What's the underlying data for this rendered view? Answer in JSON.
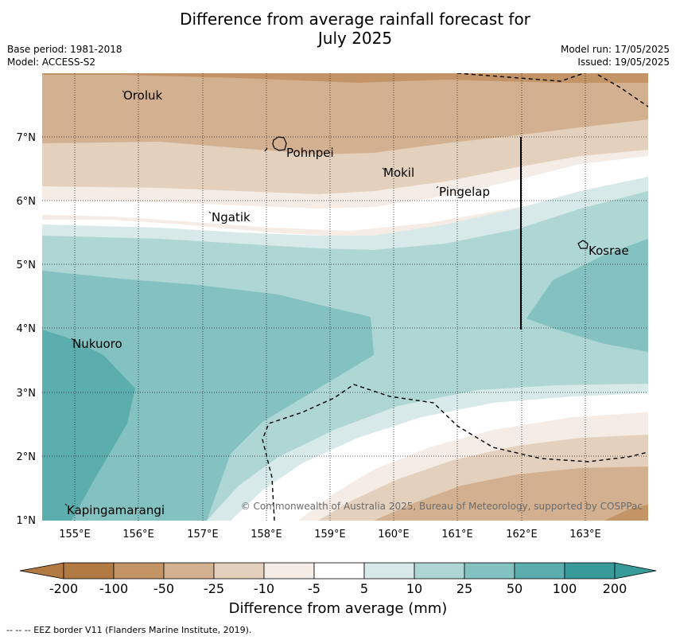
{
  "header": {
    "title_line1": "Difference from average rainfall forecast for",
    "title_line2": "July 2025",
    "base_period": "Base period: 1981-2018",
    "model": "Model: ACCESS-S2",
    "model_run": "Model run: 17/05/2025",
    "issued": "Issued: 19/05/2025"
  },
  "map": {
    "lon_labels": [
      "155°E",
      "156°E",
      "157°E",
      "158°E",
      "159°E",
      "160°E",
      "161°E",
      "162°E",
      "163°E"
    ],
    "lat_labels": [
      "7°N",
      "6°N",
      "5°N",
      "4°N",
      "3°N",
      "2°N",
      "1°N"
    ],
    "places": [
      {
        "name": "Oroluk"
      },
      {
        "name": "Pohnpei"
      },
      {
        "name": "Mokil"
      },
      {
        "name": "Pingelap"
      },
      {
        "name": "Ngatik"
      },
      {
        "name": "Kosrae"
      },
      {
        "name": "Nukuoro"
      },
      {
        "name": "Kapingamarangi"
      }
    ],
    "copyright": "© Commonwealth of Australia 2025, Bureau of Meteorology, supported by COSPPac"
  },
  "colorbar": {
    "ticks": [
      "-200",
      "-100",
      "-50",
      "-25",
      "-10",
      "-5",
      "5",
      "10",
      "25",
      "50",
      "100",
      "200"
    ],
    "colors": [
      "#b17a42",
      "#c39466",
      "#d3b08f",
      "#e3d1be",
      "#f4ece5",
      "#ffffff",
      "#d7e9e9",
      "#aed6d5",
      "#84c2c1",
      "#5baead",
      "#379b99"
    ],
    "label": "Difference from average (mm)"
  },
  "footnote": "--  --  -- EEZ border V11 (Flanders Marine Institute, 2019)."
}
